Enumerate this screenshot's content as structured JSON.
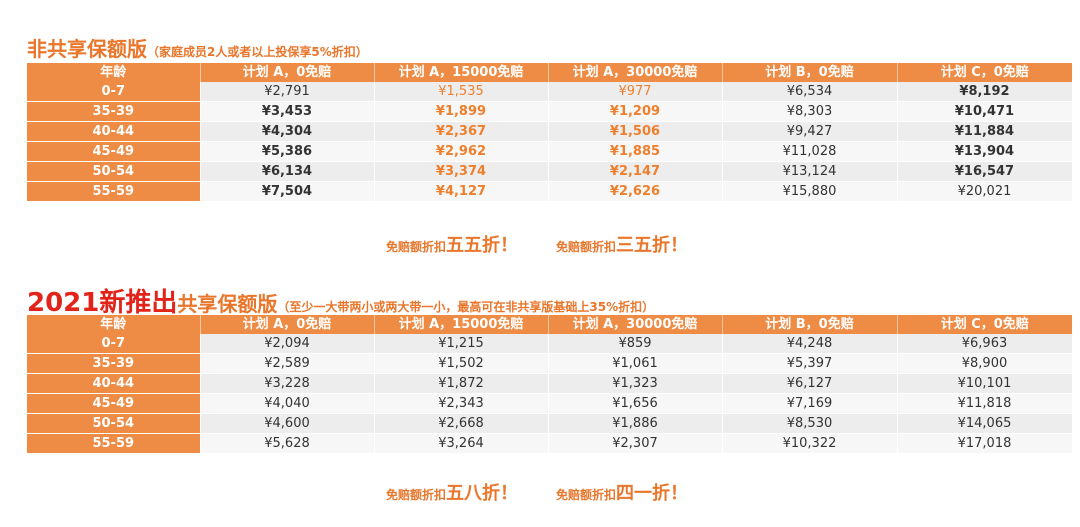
{
  "section1": {
    "title_main": "非共享保额版",
    "title_sub": "（家庭成员2人或者以上投保享5%折扣）",
    "headers": [
      "年龄",
      "计划 A，0免赔",
      "计划 A，15000免赔",
      "计划 A，30000免赔",
      "计划 B，0免赔",
      "计划 C，0免赔"
    ],
    "rows": [
      [
        "0-7",
        "¥2,791",
        "¥1,535",
        "¥977",
        "¥6,534",
        "¥8,192"
      ],
      [
        "35-39",
        "¥3,453",
        "¥1,899",
        "¥1,209",
        "¥8,303",
        "¥10,471"
      ],
      [
        "40-44",
        "¥4,304",
        "¥2,367",
        "¥1,506",
        "¥9,427",
        "¥11,884"
      ],
      [
        "45-49",
        "¥5,386",
        "¥2,962",
        "¥1,885",
        "¥11,028",
        "¥13,904"
      ],
      [
        "50-54",
        "¥6,134",
        "¥3,374",
        "¥2,147",
        "¥13,124",
        "¥16,547"
      ],
      [
        "55-59",
        "¥7,504",
        "¥4,127",
        "¥2,626",
        "¥15,880",
        "¥20,021"
      ]
    ],
    "discount1_prefix": "免赔额折扣",
    "discount1_big": "五五折！",
    "discount2_prefix": "免赔额折扣",
    "discount2_big": "三五折！"
  },
  "section2": {
    "title_red": "2021新推出",
    "title_main": "共享保额版",
    "title_sub": "（至少一大带两小或两大带一小，最高可在非共享版基础上35%折扣）",
    "headers": [
      "年龄",
      "计划 A，0免赔",
      "计划 A，15000免赔",
      "计划 A，30000免赔",
      "计划 B，0免赔",
      "计划 C，0免赔"
    ],
    "rows": [
      [
        "0-7",
        "¥2,094",
        "¥1,215",
        "¥859",
        "¥4,248",
        "¥6,963"
      ],
      [
        "35-39",
        "¥2,589",
        "¥1,502",
        "¥1,061",
        "¥5,397",
        "¥8,900"
      ],
      [
        "40-44",
        "¥3,228",
        "¥1,872",
        "¥1,323",
        "¥6,127",
        "¥10,101"
      ],
      [
        "45-49",
        "¥4,040",
        "¥2,343",
        "¥1,656",
        "¥7,169",
        "¥11,818"
      ],
      [
        "50-54",
        "¥4,600",
        "¥2,668",
        "¥1,886",
        "¥8,530",
        "¥14,065"
      ],
      [
        "55-59",
        "¥5,628",
        "¥3,264",
        "¥2,307",
        "¥10,322",
        "¥17,018"
      ]
    ],
    "discount1_prefix": "免赔额折扣",
    "discount1_big": "五八折！",
    "discount2_prefix": "免赔额折扣",
    "discount2_big": "四一折！"
  },
  "colors": {
    "accent_orange": "#ee8c45",
    "title_orange": "#e9762b",
    "highlight_red": "#e2231a"
  }
}
